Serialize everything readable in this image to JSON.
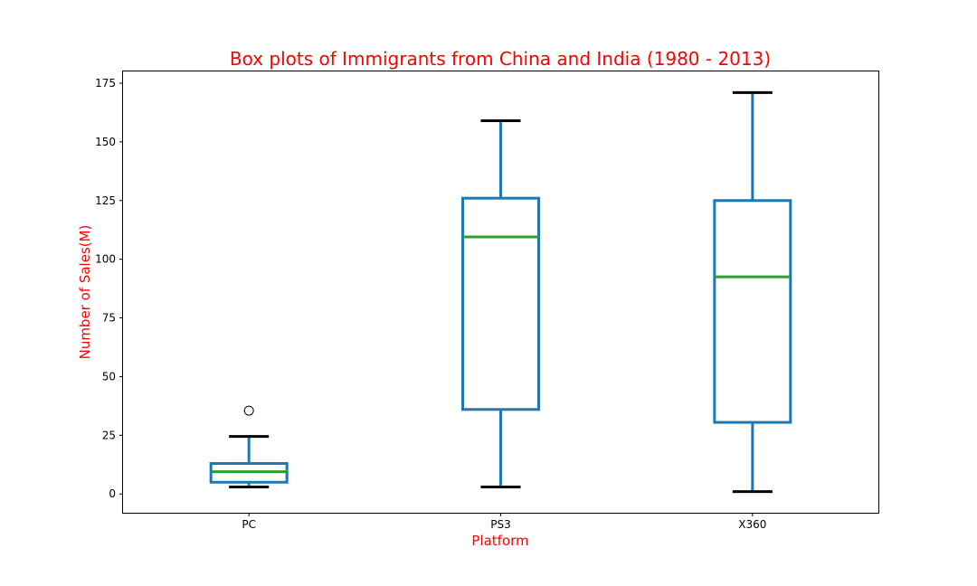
{
  "chart_data": {
    "type": "box",
    "title": "Box plots of Immigrants from China and India (1980 - 2013)",
    "xlabel": "Platform",
    "ylabel": "Number of Sales(M)",
    "categories": [
      "PC",
      "PS3",
      "X360"
    ],
    "ylim": [
      -8,
      180
    ],
    "yticks": [
      0,
      25,
      50,
      75,
      100,
      125,
      150,
      175
    ],
    "grid": false,
    "boxes": [
      {
        "category": "PC",
        "whisker_low": 3,
        "q1": 5,
        "median": 9.5,
        "q3": 13,
        "whisker_high": 24.5,
        "outliers": [
          35.5
        ]
      },
      {
        "category": "PS3",
        "whisker_low": 3,
        "q1": 36,
        "median": 109.5,
        "q3": 126,
        "whisker_high": 159,
        "outliers": []
      },
      {
        "category": "X360",
        "whisker_low": 1,
        "q1": 30.5,
        "median": 92.5,
        "q3": 125,
        "whisker_high": 171,
        "outliers": []
      }
    ],
    "colors": {
      "box": "#1f77b4",
      "median": "#2ca02c",
      "whisker_cap": "#000000",
      "title": "#ff0000",
      "axis_label": "#ff0000"
    }
  }
}
